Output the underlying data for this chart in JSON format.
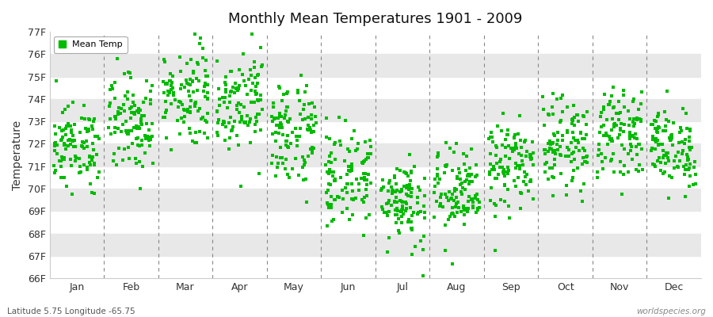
{
  "title": "Monthly Mean Temperatures 1901 - 2009",
  "ylabel": "Temperature",
  "footnote_left": "Latitude 5.75 Longitude -65.75",
  "footnote_right": "worldspecies.org",
  "legend_label": "Mean Temp",
  "dot_color": "#00bb00",
  "background_color": "#ffffff",
  "band_color": "#e8e8e8",
  "ylim": [
    66,
    77
  ],
  "months": [
    "Jan",
    "Feb",
    "Mar",
    "Apr",
    "May",
    "Jun",
    "Jul",
    "Aug",
    "Sep",
    "Oct",
    "Nov",
    "Dec"
  ],
  "monthly_means": [
    71.9,
    73.0,
    74.2,
    74.0,
    72.5,
    70.5,
    69.5,
    69.8,
    71.0,
    72.0,
    72.5,
    71.8
  ],
  "monthly_stds": [
    0.9,
    1.1,
    1.1,
    1.1,
    1.2,
    1.1,
    1.0,
    1.0,
    1.0,
    1.0,
    0.9,
    0.9
  ],
  "n_years": 109,
  "seed": 12345
}
